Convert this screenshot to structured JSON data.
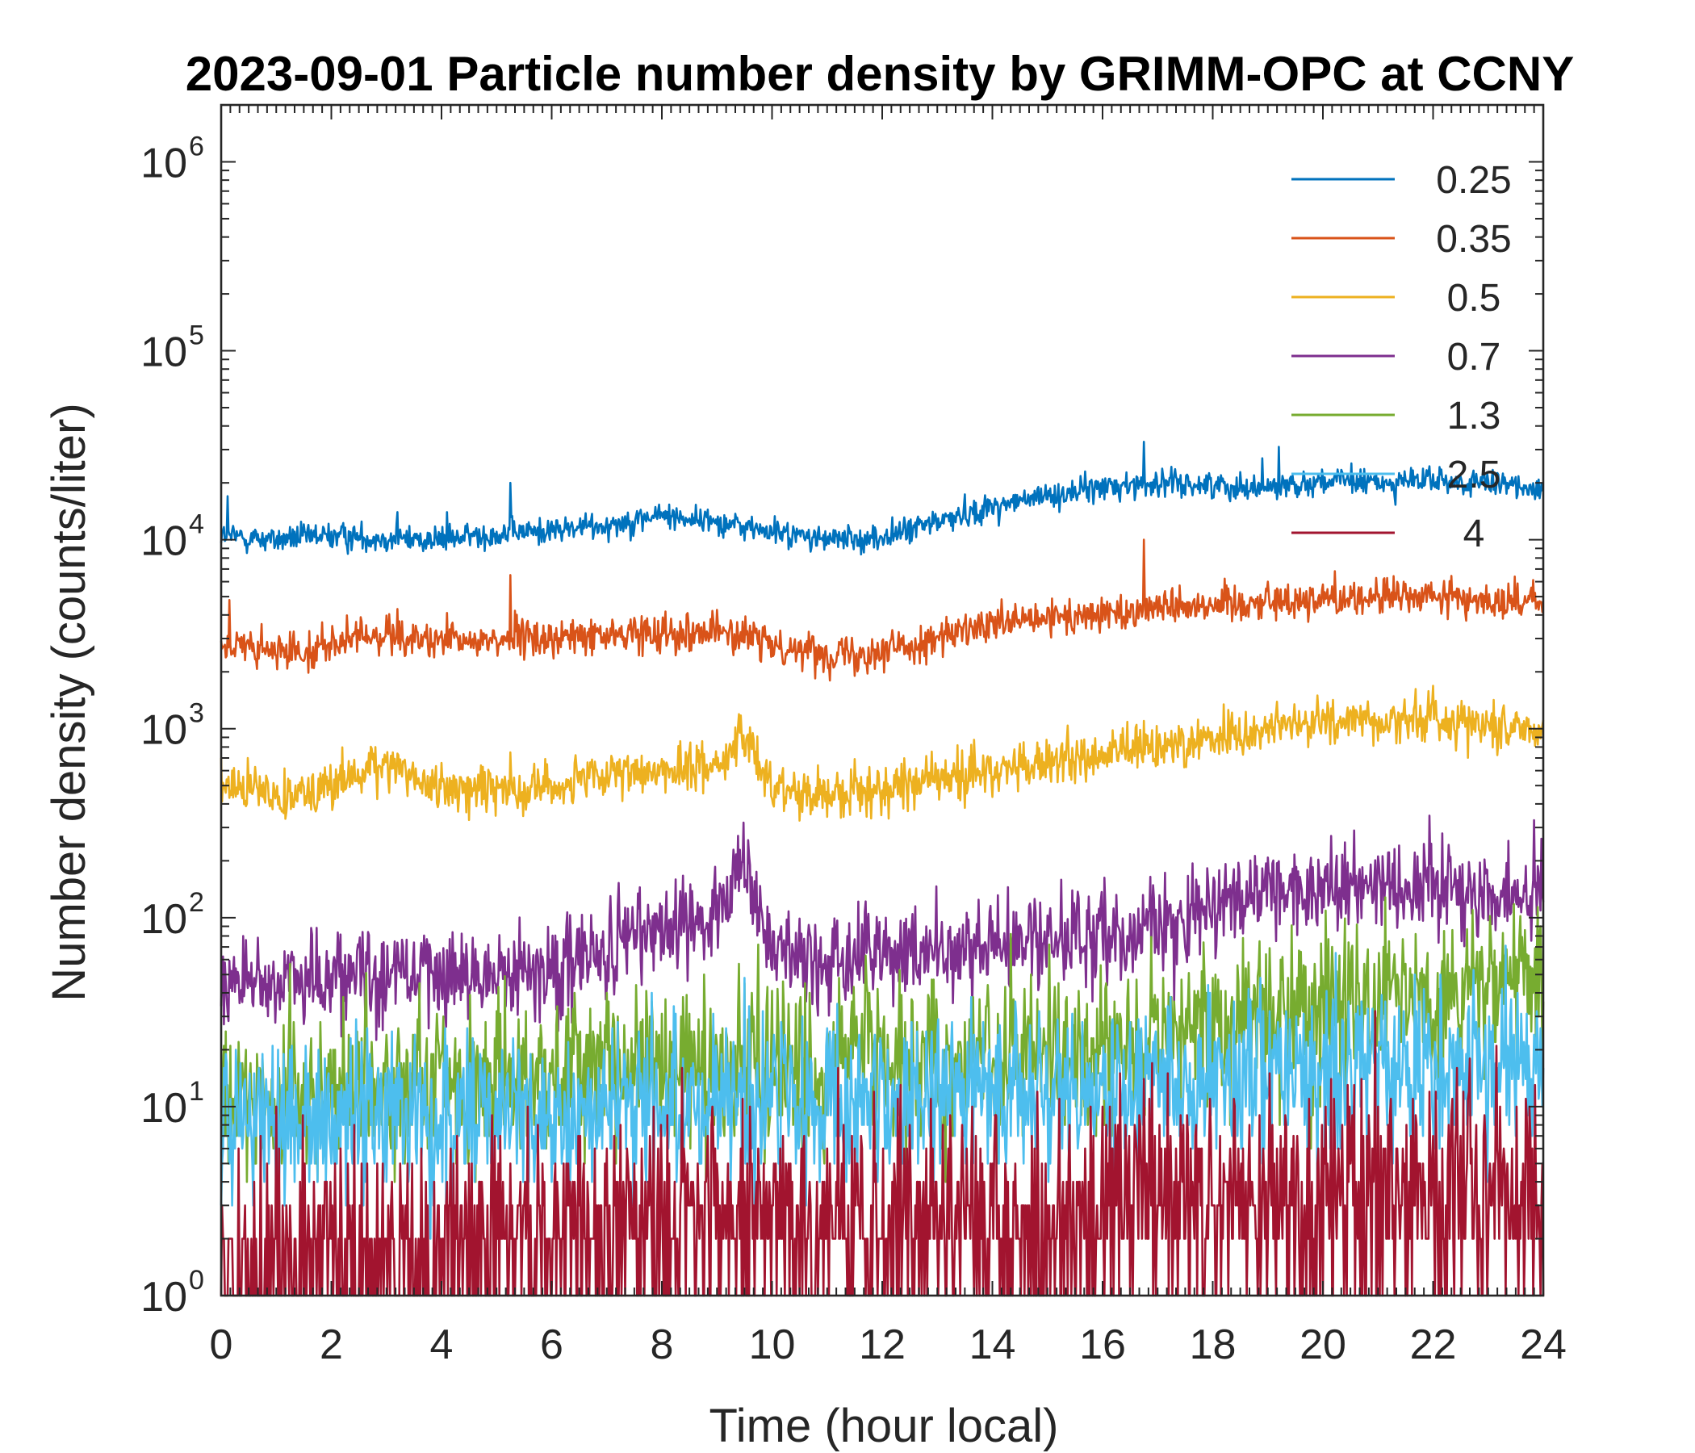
{
  "chart_data": {
    "type": "line",
    "title": "2023-09-01 Particle number density by GRIMM-OPC at CCNY",
    "xlabel": "Time (hour local)",
    "ylabel": "Number density (counts/liter)",
    "xlim": [
      0,
      24
    ],
    "ylim": [
      1,
      2000000
    ],
    "yscale": "log",
    "x_ticks": [
      0,
      2,
      4,
      6,
      8,
      10,
      12,
      14,
      16,
      18,
      20,
      22,
      24
    ],
    "y_ticks": [
      {
        "value": 1,
        "base": "10",
        "exp": "0"
      },
      {
        "value": 10,
        "base": "10",
        "exp": "1"
      },
      {
        "value": 100,
        "base": "10",
        "exp": "2"
      },
      {
        "value": 1000,
        "base": "10",
        "exp": "3"
      },
      {
        "value": 10000,
        "base": "10",
        "exp": "4"
      },
      {
        "value": 100000,
        "base": "10",
        "exp": "5"
      },
      {
        "value": 1000000,
        "base": "10",
        "exp": "6"
      }
    ],
    "legend_position": "top-right",
    "series": [
      {
        "name": "0.25",
        "color": "#0072BD",
        "x": [
          0,
          1,
          2,
          3,
          4,
          5,
          6,
          7,
          8,
          9,
          10,
          11,
          12,
          13,
          14,
          15,
          16,
          17,
          18,
          19,
          20,
          21,
          22,
          23,
          24
        ],
        "y": [
          10500,
          10000,
          10500,
          10200,
          10000,
          10800,
          11200,
          12000,
          13500,
          12500,
          11000,
          10000,
          10200,
          12500,
          15000,
          17000,
          19000,
          20000,
          19500,
          19000,
          20500,
          20000,
          20500,
          19500,
          19000
        ],
        "noise": 0.05,
        "spikes": [
          [
            0.12,
            17000
          ],
          [
            3.2,
            14000
          ],
          [
            4.1,
            14000
          ],
          [
            5.25,
            20000
          ],
          [
            16.75,
            33000
          ],
          [
            18.9,
            27000
          ],
          [
            19.2,
            31000
          ],
          [
            21.6,
            24000
          ]
        ]
      },
      {
        "name": "0.35",
        "color": "#D95319",
        "x": [
          0,
          1,
          2,
          3,
          4,
          5,
          6,
          7,
          8,
          9,
          10,
          11,
          12,
          13,
          14,
          15,
          16,
          17,
          18,
          19,
          20,
          21,
          22,
          23,
          24
        ],
        "y": [
          2800,
          2500,
          2800,
          3200,
          2800,
          3000,
          3000,
          3100,
          3300,
          3300,
          2800,
          2500,
          2600,
          3000,
          3500,
          3800,
          4000,
          4500,
          4600,
          4700,
          4900,
          5000,
          5000,
          4800,
          4600
        ],
        "noise": 0.07,
        "spikes": [
          [
            0.15,
            4800
          ],
          [
            3.2,
            4300
          ],
          [
            4.1,
            4100
          ],
          [
            5.25,
            6500
          ],
          [
            16.75,
            10000
          ],
          [
            19.0,
            6000
          ],
          [
            20.0,
            5800
          ]
        ]
      },
      {
        "name": "0.5",
        "color": "#EDB120",
        "x": [
          0,
          1,
          2,
          3,
          4,
          5,
          6,
          7,
          8,
          9,
          9.5,
          10,
          11,
          12,
          13,
          14,
          15,
          16,
          17,
          18,
          19,
          20,
          21,
          22,
          23,
          24
        ],
        "y": [
          500,
          450,
          500,
          650,
          480,
          480,
          500,
          550,
          600,
          650,
          900,
          500,
          450,
          480,
          550,
          600,
          650,
          720,
          800,
          900,
          1000,
          1100,
          1100,
          1150,
          1050,
          1000
        ],
        "noise": 0.09,
        "spikes": [
          [
            2.8,
            800
          ],
          [
            5.25,
            750
          ],
          [
            16.75,
            1100
          ],
          [
            19.9,
            1500
          ]
        ]
      },
      {
        "name": "0.7",
        "color": "#7E2F8E",
        "x": [
          0,
          1,
          2,
          3,
          4,
          5,
          6,
          7,
          8,
          9,
          9.5,
          10,
          11,
          12,
          13,
          14,
          15,
          16,
          17,
          18,
          19,
          20,
          21,
          22,
          23,
          24
        ],
        "y": [
          45,
          48,
          50,
          52,
          50,
          50,
          55,
          65,
          90,
          110,
          160,
          70,
          55,
          65,
          65,
          70,
          75,
          80,
          95,
          110,
          130,
          140,
          160,
          150,
          140,
          135
        ],
        "noise": 0.18,
        "spikes": [
          [
            9.6,
            190
          ],
          [
            21.3,
            220
          ]
        ]
      },
      {
        "name": "1.3",
        "color": "#77AC30",
        "x": [
          0,
          2,
          4,
          6,
          8,
          10,
          12,
          14,
          16,
          18,
          20,
          22,
          24
        ],
        "y": [
          10,
          12,
          13,
          15,
          18,
          16,
          17,
          18,
          20,
          28,
          35,
          40,
          42
        ],
        "noise": 0.3,
        "spikes": [
          [
            9.5,
            45
          ],
          [
            22.2,
            85
          ]
        ]
      },
      {
        "name": "2.5",
        "color": "#4DBEEE",
        "x": [
          0,
          2,
          4,
          6,
          8,
          10,
          12,
          14,
          16,
          18,
          20,
          22,
          24
        ],
        "y": [
          8,
          9,
          8,
          9,
          10,
          11,
          11,
          12,
          12,
          13,
          15,
          16,
          16
        ],
        "noise": 0.3,
        "spikes": [
          [
            9.5,
            48
          ],
          [
            3.0,
            4
          ]
        ]
      },
      {
        "name": "4",
        "color": "#A2142F",
        "x": [
          0,
          2,
          4,
          6,
          8,
          10,
          12,
          14,
          16,
          18,
          20,
          22,
          24
        ],
        "y": [
          1.2,
          1.5,
          1.6,
          1.8,
          2.5,
          2.8,
          2.6,
          2.4,
          3.0,
          3.2,
          3.4,
          3.5,
          3.2
        ],
        "noise": 0.45,
        "spikes": [
          [
            1.0,
            10
          ],
          [
            9.6,
            10
          ],
          [
            21.0,
            10
          ]
        ]
      }
    ]
  }
}
